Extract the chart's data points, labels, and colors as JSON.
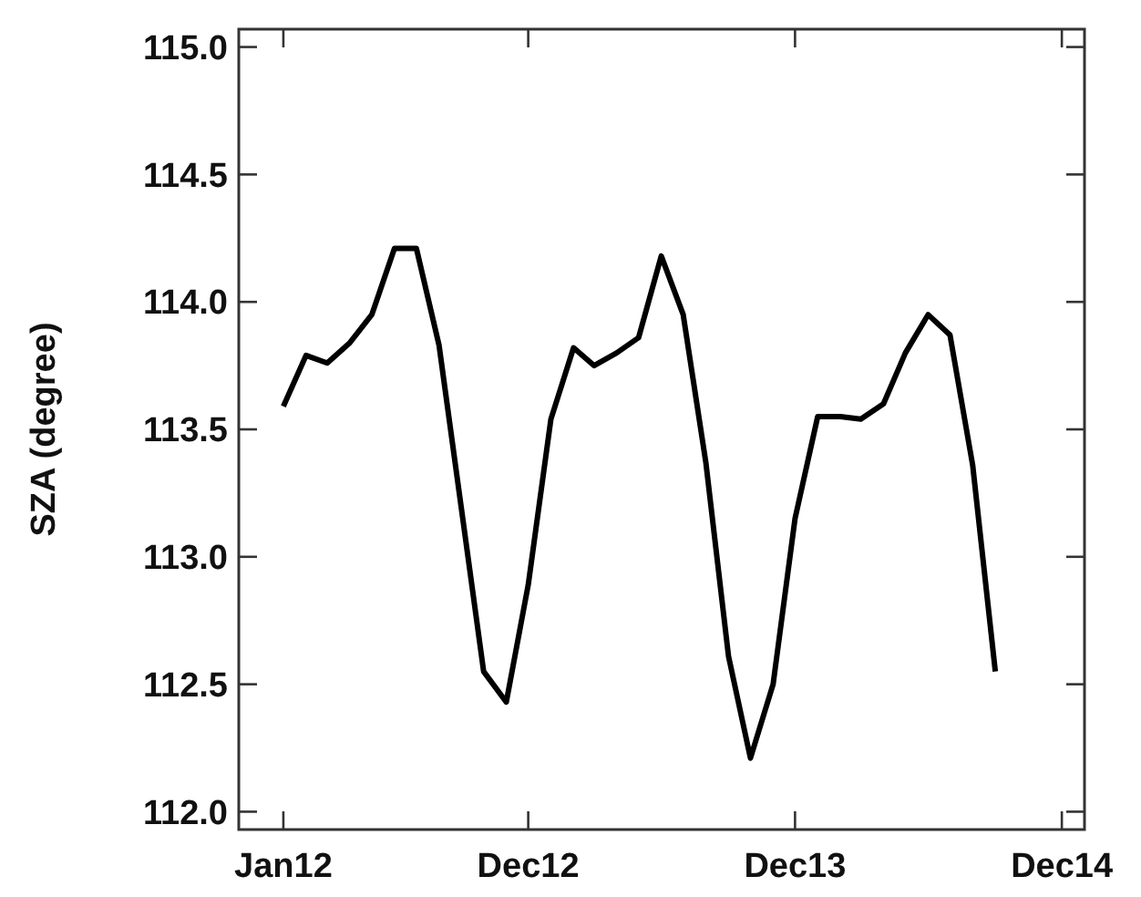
{
  "chart_data": {
    "type": "line",
    "ylabel": "SZA (degree)",
    "x": [
      "2012-01",
      "2012-02",
      "2012-03",
      "2012-04",
      "2012-05",
      "2012-06",
      "2012-07",
      "2012-08",
      "2012-09",
      "2012-10",
      "2012-11",
      "2012-12",
      "2013-01",
      "2013-02",
      "2013-03",
      "2013-04",
      "2013-05",
      "2013-06",
      "2013-07",
      "2013-08",
      "2013-09",
      "2013-10",
      "2013-11",
      "2013-12",
      "2014-01",
      "2014-02",
      "2014-03",
      "2014-04",
      "2014-05",
      "2014-06",
      "2014-07",
      "2014-08",
      "2014-09"
    ],
    "series": [
      {
        "color": "#000000",
        "values": [
          113.59,
          113.79,
          113.76,
          113.84,
          113.95,
          114.21,
          114.21,
          113.83,
          113.18,
          112.55,
          112.43,
          112.89,
          113.54,
          113.82,
          113.75,
          113.8,
          113.86,
          114.18,
          113.95,
          113.37,
          112.61,
          112.21,
          112.5,
          113.15,
          113.55,
          113.55,
          113.54,
          113.6,
          113.8,
          113.95,
          113.87,
          113.36,
          112.55
        ]
      }
    ],
    "xlim": [
      "2011-11",
      "2015-01"
    ],
    "xticks": [
      {
        "value": "2012-01",
        "label": "Jan12"
      },
      {
        "value": "2012-12",
        "label": "Dec12"
      },
      {
        "value": "2013-12",
        "label": "Dec13"
      },
      {
        "value": "2014-12",
        "label": "Dec14"
      }
    ],
    "ylim": [
      111.93,
      115.07
    ],
    "yticks": [
      {
        "value": 112,
        "label": "112.0"
      },
      112.5,
      {
        "value": 113,
        "label": "113.0"
      },
      113.5,
      {
        "value": 114,
        "label": "114.0"
      },
      114.5,
      {
        "value": 115,
        "label": "115.0"
      }
    ],
    "marker": "none",
    "line_style": "solid"
  }
}
